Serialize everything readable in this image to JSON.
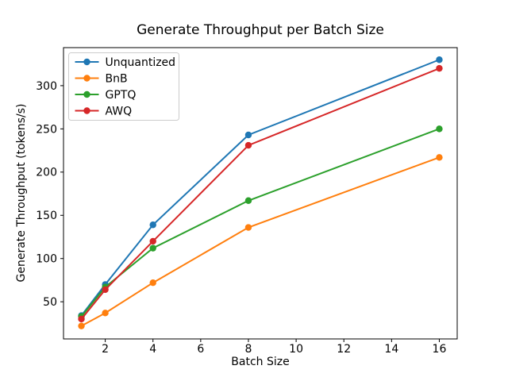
{
  "figure": {
    "title": "Generate Throughput per Batch Size",
    "xlabel": "Batch Size",
    "ylabel": "Generate Throughput (tokens/s)"
  },
  "chart_data": {
    "type": "line",
    "title": "Generate Throughput per Batch Size",
    "xlabel": "Batch Size",
    "ylabel": "Generate Throughput (tokens/s)",
    "x": [
      1,
      2,
      4,
      8,
      16
    ],
    "series": [
      {
        "name": "Unquantized",
        "color": "#1f77b4",
        "values": [
          34,
          70,
          139,
          243,
          330
        ]
      },
      {
        "name": "BnB",
        "color": "#ff7f0e",
        "values": [
          22,
          37,
          72,
          136,
          217
        ]
      },
      {
        "name": "GPTQ",
        "color": "#2ca02c",
        "values": [
          33,
          67,
          112,
          167,
          250
        ]
      },
      {
        "name": "AWQ",
        "color": "#d62728",
        "values": [
          30,
          64,
          120,
          231,
          320
        ]
      }
    ],
    "xticks": [
      2,
      4,
      6,
      8,
      10,
      12,
      14,
      16
    ],
    "yticks": [
      50,
      100,
      150,
      200,
      250,
      300
    ],
    "xlim": [
      0.25,
      16.75
    ],
    "ylim": [
      7,
      344
    ],
    "grid": false,
    "marker": "circle",
    "legend": {
      "position": "upper-left",
      "entries": [
        "Unquantized",
        "BnB",
        "GPTQ",
        "AWQ"
      ]
    },
    "colors": {
      "background": "#ffffff",
      "spine": "#000000",
      "legend_border": "#cccccc"
    }
  }
}
